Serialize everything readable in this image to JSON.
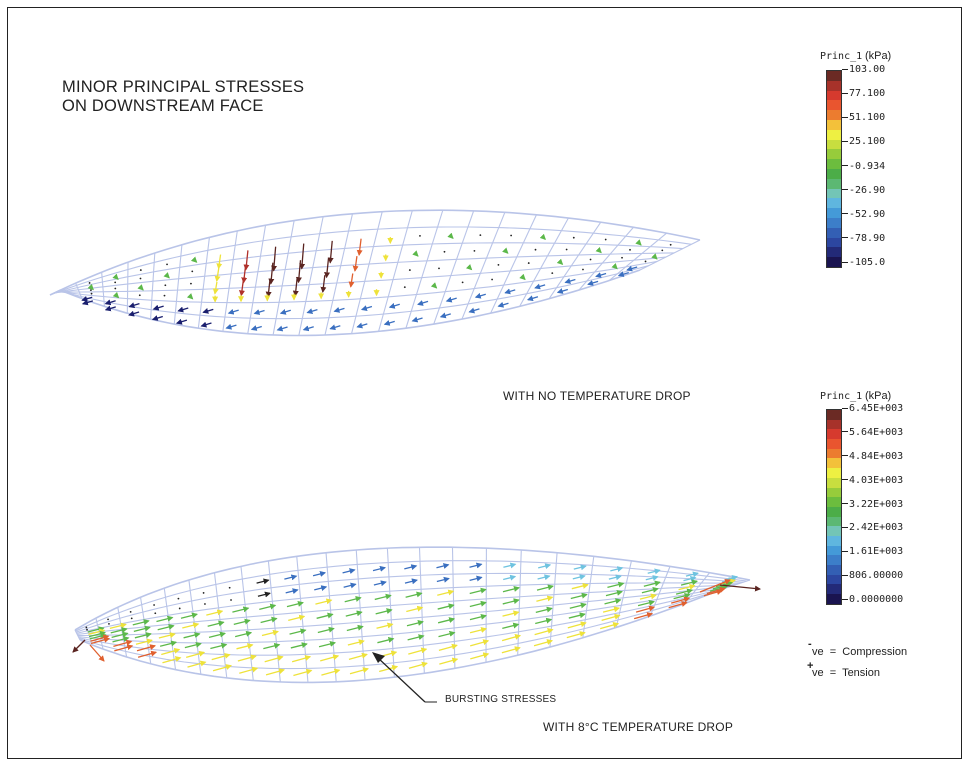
{
  "title": {
    "line1": "MINOR PRINCIPAL STRESSES",
    "line2": "ON DOWNSTREAM FACE"
  },
  "captions": {
    "top": "WITH NO TEMPERATURE DROP",
    "bottom": "WITH 8°C TEMPERATURE DROP",
    "callout": "BURSTING STRESSES"
  },
  "legend_top": {
    "variable": "Princ_1",
    "unit": "(kPa)",
    "ticks": [
      "103.00",
      "77.100",
      "51.100",
      "25.100",
      "-0.934",
      "-26.90",
      "-52.90",
      "-78.90",
      "-105.0"
    ],
    "colors": [
      "#6b2a24",
      "#a7322a",
      "#d63a2e",
      "#e9552f",
      "#ec7c2f",
      "#f3c13a",
      "#eef042",
      "#c8de3f",
      "#97cc3b",
      "#6cbd3e",
      "#4cad48",
      "#5cb873",
      "#73c5b6",
      "#5fb6df",
      "#449ad8",
      "#3c7ec9",
      "#335fb4",
      "#2c46a0",
      "#232a78",
      "#1a1450"
    ]
  },
  "legend_bottom": {
    "variable": "Princ_1",
    "unit": "(kPa)",
    "ticks": [
      "6.45E+003",
      "5.64E+003",
      "4.84E+003",
      "4.03E+003",
      "3.22E+003",
      "2.42E+003",
      "1.61E+003",
      "806.00000",
      "0.0000000"
    ],
    "colors": [
      "#6b2a24",
      "#a7322a",
      "#d63a2e",
      "#e9552f",
      "#ec7c2f",
      "#f3c13a",
      "#eef042",
      "#c8de3f",
      "#97cc3b",
      "#6cbd3e",
      "#4cad48",
      "#5cb873",
      "#73c5b6",
      "#5fb6df",
      "#449ad8",
      "#3c7ec9",
      "#335fb4",
      "#2c46a0",
      "#232a78",
      "#1a1450"
    ]
  },
  "sign_legend": {
    "minus_sign": "-",
    "minus_text": "ve  =  Compression",
    "plus_sign": "+",
    "plus_text": "ve  =  Tension"
  },
  "mesh_color": "#b9c4e8",
  "arrow_colors": {
    "compression_dark": "#1a1f6e",
    "compression": "#3a6fc0",
    "compression_light": "#6fc3e0",
    "neutral": "#5cb84a",
    "mid": "#eee23a",
    "tension": "#e0602f",
    "tension_high": "#b0302a",
    "tension_max": "#5a2420"
  }
}
